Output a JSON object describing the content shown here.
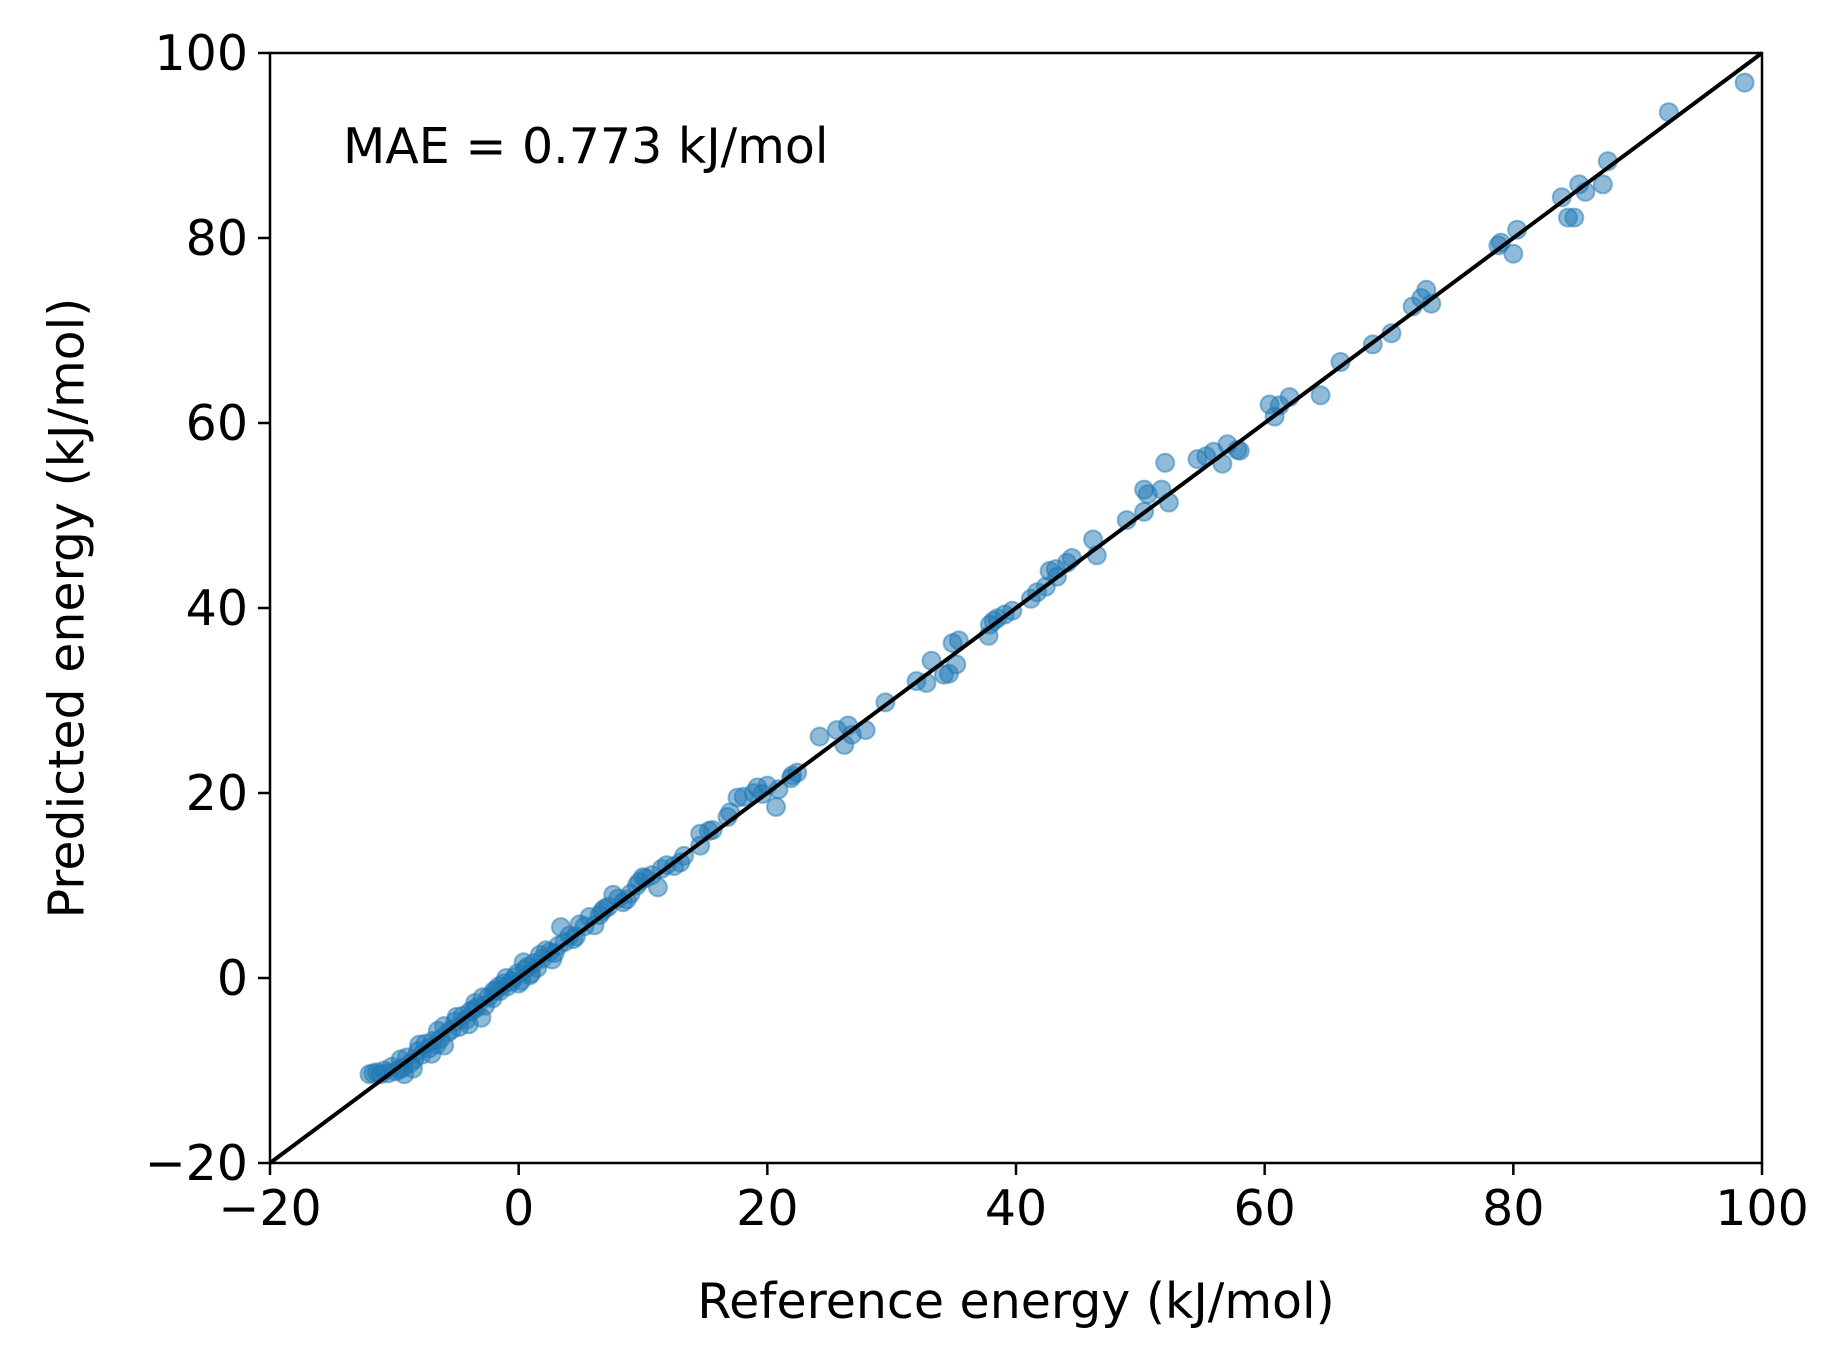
{
  "chart_data": {
    "type": "scatter",
    "title": "",
    "annotation": "MAE = 0.773 kJ/mol",
    "xlabel": "Reference energy (kJ/mol)",
    "ylabel": "Predicted energy (kJ/mol)",
    "xlim": [
      -20,
      100
    ],
    "ylim": [
      -20,
      100
    ],
    "xticks": [
      "−20",
      "0",
      "20",
      "40",
      "60",
      "80",
      "100"
    ],
    "yticks": [
      "−20",
      "0",
      "20",
      "40",
      "60",
      "80",
      "100"
    ],
    "xtick_values": [
      -20,
      0,
      20,
      40,
      60,
      80,
      100
    ],
    "ytick_values": [
      -20,
      0,
      20,
      40,
      60,
      80,
      100
    ],
    "grid": false,
    "legend": "none",
    "colors": {
      "points": "#1f77b4",
      "reference_line": "#000000"
    },
    "reference_line": {
      "from": [
        -20,
        -20
      ],
      "to": [
        100,
        100
      ]
    },
    "series": [
      {
        "points": [
          [
            98.6,
            96.8
          ],
          [
            92.5,
            93.6
          ],
          [
            87.6,
            88.3
          ],
          [
            87.2,
            85.8
          ],
          [
            85.8,
            85.0
          ],
          [
            85.3,
            85.8
          ],
          [
            84.9,
            82.2
          ],
          [
            84.4,
            82.2
          ],
          [
            83.9,
            84.4
          ],
          [
            80.3,
            80.9
          ],
          [
            80.0,
            78.3
          ],
          [
            79.0,
            79.5
          ],
          [
            78.8,
            79.2
          ],
          [
            73.4,
            72.9
          ],
          [
            73.0,
            74.4
          ],
          [
            72.6,
            73.5
          ],
          [
            71.9,
            72.6
          ],
          [
            70.2,
            69.7
          ],
          [
            68.7,
            68.5
          ],
          [
            66.1,
            66.6
          ],
          [
            64.5,
            63.0
          ],
          [
            62.0,
            62.8
          ],
          [
            61.2,
            61.9
          ],
          [
            60.8,
            60.7
          ],
          [
            60.4,
            62.0
          ],
          [
            58.0,
            57.0
          ],
          [
            57.8,
            57.1
          ],
          [
            57.0,
            57.7
          ],
          [
            56.6,
            55.6
          ],
          [
            55.9,
            56.9
          ],
          [
            55.3,
            56.4
          ],
          [
            54.6,
            56.1
          ],
          [
            52.3,
            51.4
          ],
          [
            52.0,
            55.7
          ],
          [
            51.7,
            52.8
          ],
          [
            50.6,
            52.3
          ],
          [
            50.3,
            50.4
          ],
          [
            50.3,
            52.8
          ],
          [
            48.9,
            49.5
          ],
          [
            46.5,
            45.7
          ],
          [
            46.2,
            47.4
          ],
          [
            44.5,
            45.4
          ],
          [
            44.1,
            44.9
          ],
          [
            43.3,
            43.4
          ],
          [
            43.2,
            44.2
          ],
          [
            42.7,
            44.0
          ],
          [
            42.4,
            42.3
          ],
          [
            41.7,
            41.7
          ],
          [
            41.2,
            41.0
          ],
          [
            39.7,
            39.7
          ],
          [
            39.1,
            39.3
          ],
          [
            38.5,
            38.9
          ],
          [
            38.2,
            38.6
          ],
          [
            37.9,
            38.2
          ],
          [
            37.8,
            37.0
          ],
          [
            35.4,
            36.5
          ],
          [
            35.2,
            33.9
          ],
          [
            34.9,
            36.2
          ],
          [
            34.6,
            32.9
          ],
          [
            34.2,
            32.8
          ],
          [
            33.2,
            34.3
          ],
          [
            32.8,
            31.9
          ],
          [
            32.0,
            32.1
          ],
          [
            29.5,
            29.8
          ],
          [
            27.9,
            26.8
          ],
          [
            26.8,
            26.3
          ],
          [
            26.5,
            27.3
          ],
          [
            26.2,
            25.2
          ],
          [
            25.6,
            26.8
          ],
          [
            24.2,
            26.1
          ],
          [
            22.4,
            22.2
          ],
          [
            21.9,
            21.6
          ],
          [
            20.9,
            20.4
          ],
          [
            20.7,
            18.5
          ],
          [
            20.0,
            20.8
          ],
          [
            19.6,
            19.9
          ],
          [
            19.2,
            20.6
          ],
          [
            18.9,
            20.0
          ],
          [
            18.1,
            19.6
          ],
          [
            17.6,
            19.5
          ],
          [
            16.8,
            17.4
          ],
          [
            15.6,
            16.0
          ],
          [
            15.3,
            15.9
          ],
          [
            14.6,
            15.6
          ],
          [
            14.6,
            14.3
          ],
          [
            13.3,
            13.2
          ],
          [
            13.0,
            12.5
          ],
          [
            12.5,
            12.1
          ],
          [
            11.9,
            12.2
          ],
          [
            11.5,
            11.8
          ],
          [
            11.2,
            9.8
          ],
          [
            10.7,
            11.1
          ],
          [
            10.2,
            10.8
          ],
          [
            9.7,
            10.4
          ],
          [
            9.5,
            10.0
          ],
          [
            9.0,
            9.1
          ],
          [
            8.7,
            8.5
          ],
          [
            8.4,
            8.2
          ],
          [
            8.0,
            8.6
          ],
          [
            7.6,
            9.0
          ],
          [
            7.2,
            7.7
          ],
          [
            6.9,
            7.5
          ],
          [
            6.5,
            6.8
          ],
          [
            6.1,
            5.7
          ],
          [
            5.7,
            6.6
          ],
          [
            5.3,
            5.6
          ],
          [
            4.9,
            5.8
          ],
          [
            4.6,
            4.5
          ],
          [
            4.4,
            4.2
          ],
          [
            4.1,
            4.6
          ],
          [
            3.7,
            3.9
          ],
          [
            3.4,
            5.5
          ],
          [
            3.2,
            3.5
          ],
          [
            2.9,
            2.7
          ],
          [
            2.5,
            2.8
          ],
          [
            2.2,
            3.0
          ],
          [
            1.9,
            2.1
          ],
          [
            1.5,
            1.1
          ],
          [
            1.2,
            1.6
          ],
          [
            0.9,
            0.3
          ],
          [
            0.5,
            0.9
          ],
          [
            0.2,
            -0.3
          ],
          [
            -0.1,
            0.5
          ],
          [
            -0.3,
            0.1
          ],
          [
            -0.6,
            -0.4
          ],
          [
            -0.9,
            -0.9
          ],
          [
            -1.2,
            -0.6
          ],
          [
            -1.5,
            -1.4
          ],
          [
            -1.8,
            -1.3
          ],
          [
            -2.1,
            -2.2
          ],
          [
            -2.4,
            -2.0
          ],
          [
            -2.7,
            -3.0
          ],
          [
            -3.0,
            -4.3
          ],
          [
            -3.3,
            -3.1
          ],
          [
            -3.6,
            -3.4
          ],
          [
            -3.9,
            -3.6
          ],
          [
            -4.2,
            -4.5
          ],
          [
            -4.5,
            -4.1
          ],
          [
            -4.8,
            -5.3
          ],
          [
            -5.1,
            -4.7
          ],
          [
            -5.4,
            -5.6
          ],
          [
            -5.7,
            -5.9
          ],
          [
            -6.0,
            -5.2
          ],
          [
            -6.3,
            -6.6
          ],
          [
            -6.6,
            -7.2
          ],
          [
            -6.9,
            -6.8
          ],
          [
            -7.2,
            -7.6
          ],
          [
            -7.5,
            -7.1
          ],
          [
            -7.8,
            -8.3
          ],
          [
            -8.1,
            -7.9
          ],
          [
            -8.4,
            -8.8
          ],
          [
            -8.7,
            -9.2
          ],
          [
            -9.0,
            -8.6
          ],
          [
            -9.3,
            -9.7
          ],
          [
            -9.6,
            -9.9
          ],
          [
            -9.9,
            -10.1
          ],
          [
            -10.2,
            -9.6
          ],
          [
            -10.5,
            -10.3
          ],
          [
            -10.8,
            -10.0
          ],
          [
            -11.1,
            -10.4
          ],
          [
            -11.4,
            -10.2
          ],
          [
            -11.7,
            -10.3
          ],
          [
            -12.0,
            -10.4
          ],
          [
            -1.0,
            0.0
          ],
          [
            0.0,
            -0.6
          ],
          [
            0.4,
            1.7
          ],
          [
            1.0,
            0.5
          ],
          [
            -2.0,
            -1.4
          ],
          [
            -3.5,
            -2.7
          ],
          [
            -5.0,
            -4.2
          ],
          [
            -6.5,
            -5.7
          ],
          [
            -8.0,
            -7.2
          ],
          [
            -9.5,
            -8.8
          ],
          [
            -4.0,
            -5.0
          ],
          [
            -6.0,
            -7.3
          ],
          [
            -7.0,
            -8.2
          ],
          [
            -8.5,
            -9.8
          ],
          [
            -9.2,
            -10.4
          ],
          [
            -2.9,
            -2.1
          ],
          [
            -1.6,
            -0.9
          ],
          [
            0.7,
            1.2
          ],
          [
            1.7,
            2.5
          ],
          [
            2.7,
            2.0
          ],
          [
            6.7,
            7.2
          ],
          [
            10.0,
            10.9
          ],
          [
            17.0,
            17.9
          ],
          [
            22.0,
            21.9
          ]
        ]
      }
    ]
  }
}
